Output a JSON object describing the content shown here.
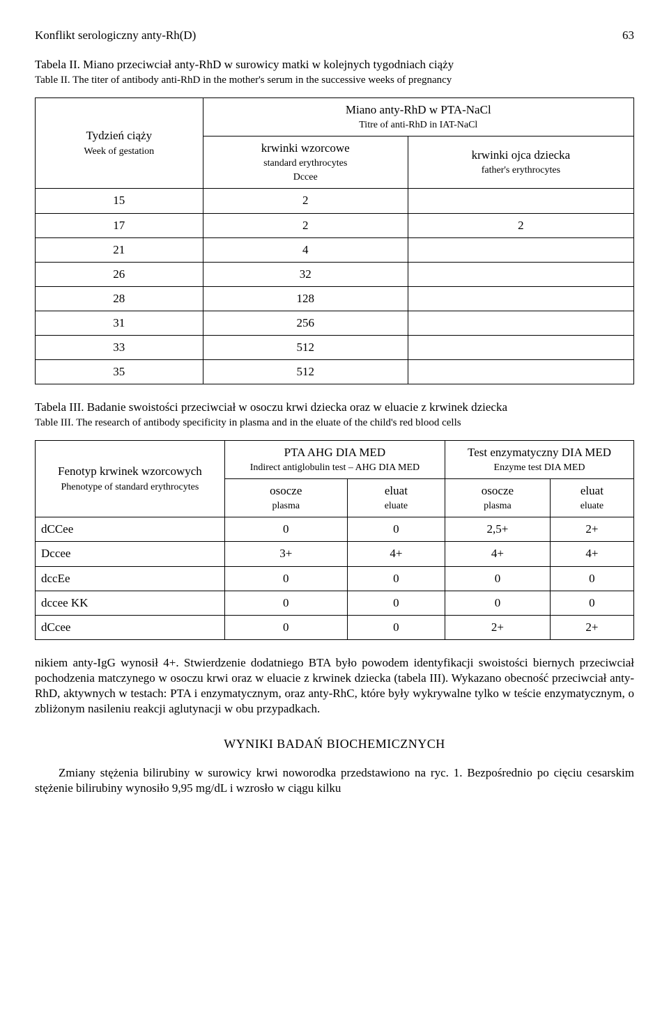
{
  "header": {
    "running_title": "Konflikt serologiczny anty-Rh(D)",
    "page_number": "63"
  },
  "table2": {
    "caption_pl": "Tabela II. Miano przeciwciał anty-RhD w surowicy matki w kolejnych tygodniach ciąży",
    "caption_en": "Table II. The titer of antibody anti-RhD in the mother's serum in the successive weeks of pregnancy",
    "col1_pl": "Tydzień ciąży",
    "col1_en": "Week of gestation",
    "super_pl": "Miano anty-RhD w PTA-NaCl",
    "super_en": "Titre of anti-RhD in IAT-NaCl",
    "col2_pl": "krwinki wzorcowe",
    "col2_en": "standard erythrocytes",
    "col2_extra": "Dccee",
    "col3_pl": "krwinki ojca dziecka",
    "col3_en": "father's erythrocytes",
    "rows": [
      [
        "15",
        "2",
        ""
      ],
      [
        "17",
        "2",
        "2"
      ],
      [
        "21",
        "4",
        ""
      ],
      [
        "26",
        "32",
        ""
      ],
      [
        "28",
        "128",
        ""
      ],
      [
        "31",
        "256",
        ""
      ],
      [
        "33",
        "512",
        ""
      ],
      [
        "35",
        "512",
        ""
      ]
    ]
  },
  "table3": {
    "caption_pl": "Tabela III. Badanie swoistości przeciwciał w osoczu krwi dziecka oraz w eluacie z krwinek dziecka",
    "caption_en": "Table III. The research of antibody specificity in plasma and in the eluate of the child's red blood cells",
    "col1_pl": "Fenotyp krwinek wzorcowych",
    "col1_en": "Phenotype of standard erythrocytes",
    "grpA_pl": "PTA AHG DIA MED",
    "grpA_en": "Indirect antiglobulin test – AHG DIA MED",
    "grpB_pl": "Test enzymatyczny DIA MED",
    "grpB_en": "Enzyme test DIA MED",
    "sub_osocze": "osocze",
    "sub_plasma": "plasma",
    "sub_eluat": "eluat",
    "sub_eluate": "eluate",
    "rows": [
      [
        "dCCee",
        "0",
        "0",
        "2,5+",
        "2+"
      ],
      [
        "Dccee",
        "3+",
        "4+",
        "4+",
        "4+"
      ],
      [
        "dccEe",
        "0",
        "0",
        "0",
        "0"
      ],
      [
        "dccee KK",
        "0",
        "0",
        "0",
        "0"
      ],
      [
        "dCcee",
        "0",
        "0",
        "2+",
        "2+"
      ]
    ]
  },
  "para1": "nikiem anty-IgG wynosił 4+. Stwierdzenie dodatniego BTA było powodem identyfikacji swoistości biernych przeciwciał pochodzenia matczynego w osoczu krwi oraz w eluacie z krwinek dziecka (tabela III). Wykazano obecność przeciwciał anty-RhD, aktywnych w testach: PTA i enzymatycznym, oraz anty-RhC, które były wykrywalne tylko w teście enzymatycznym, o zbliżonym nasileniu reakcji aglutynacji w obu przypadkach.",
  "section_title": "WYNIKI BADAŃ BIOCHEMICZNYCH",
  "para2": "Zmiany stężenia bilirubiny w surowicy krwi noworodka przedstawiono na ryc. 1. Bezpośrednio po cięciu cesarskim stężenie bilirubiny wynosiło 9,95 mg/dL i wzrosło w ciągu kilku"
}
